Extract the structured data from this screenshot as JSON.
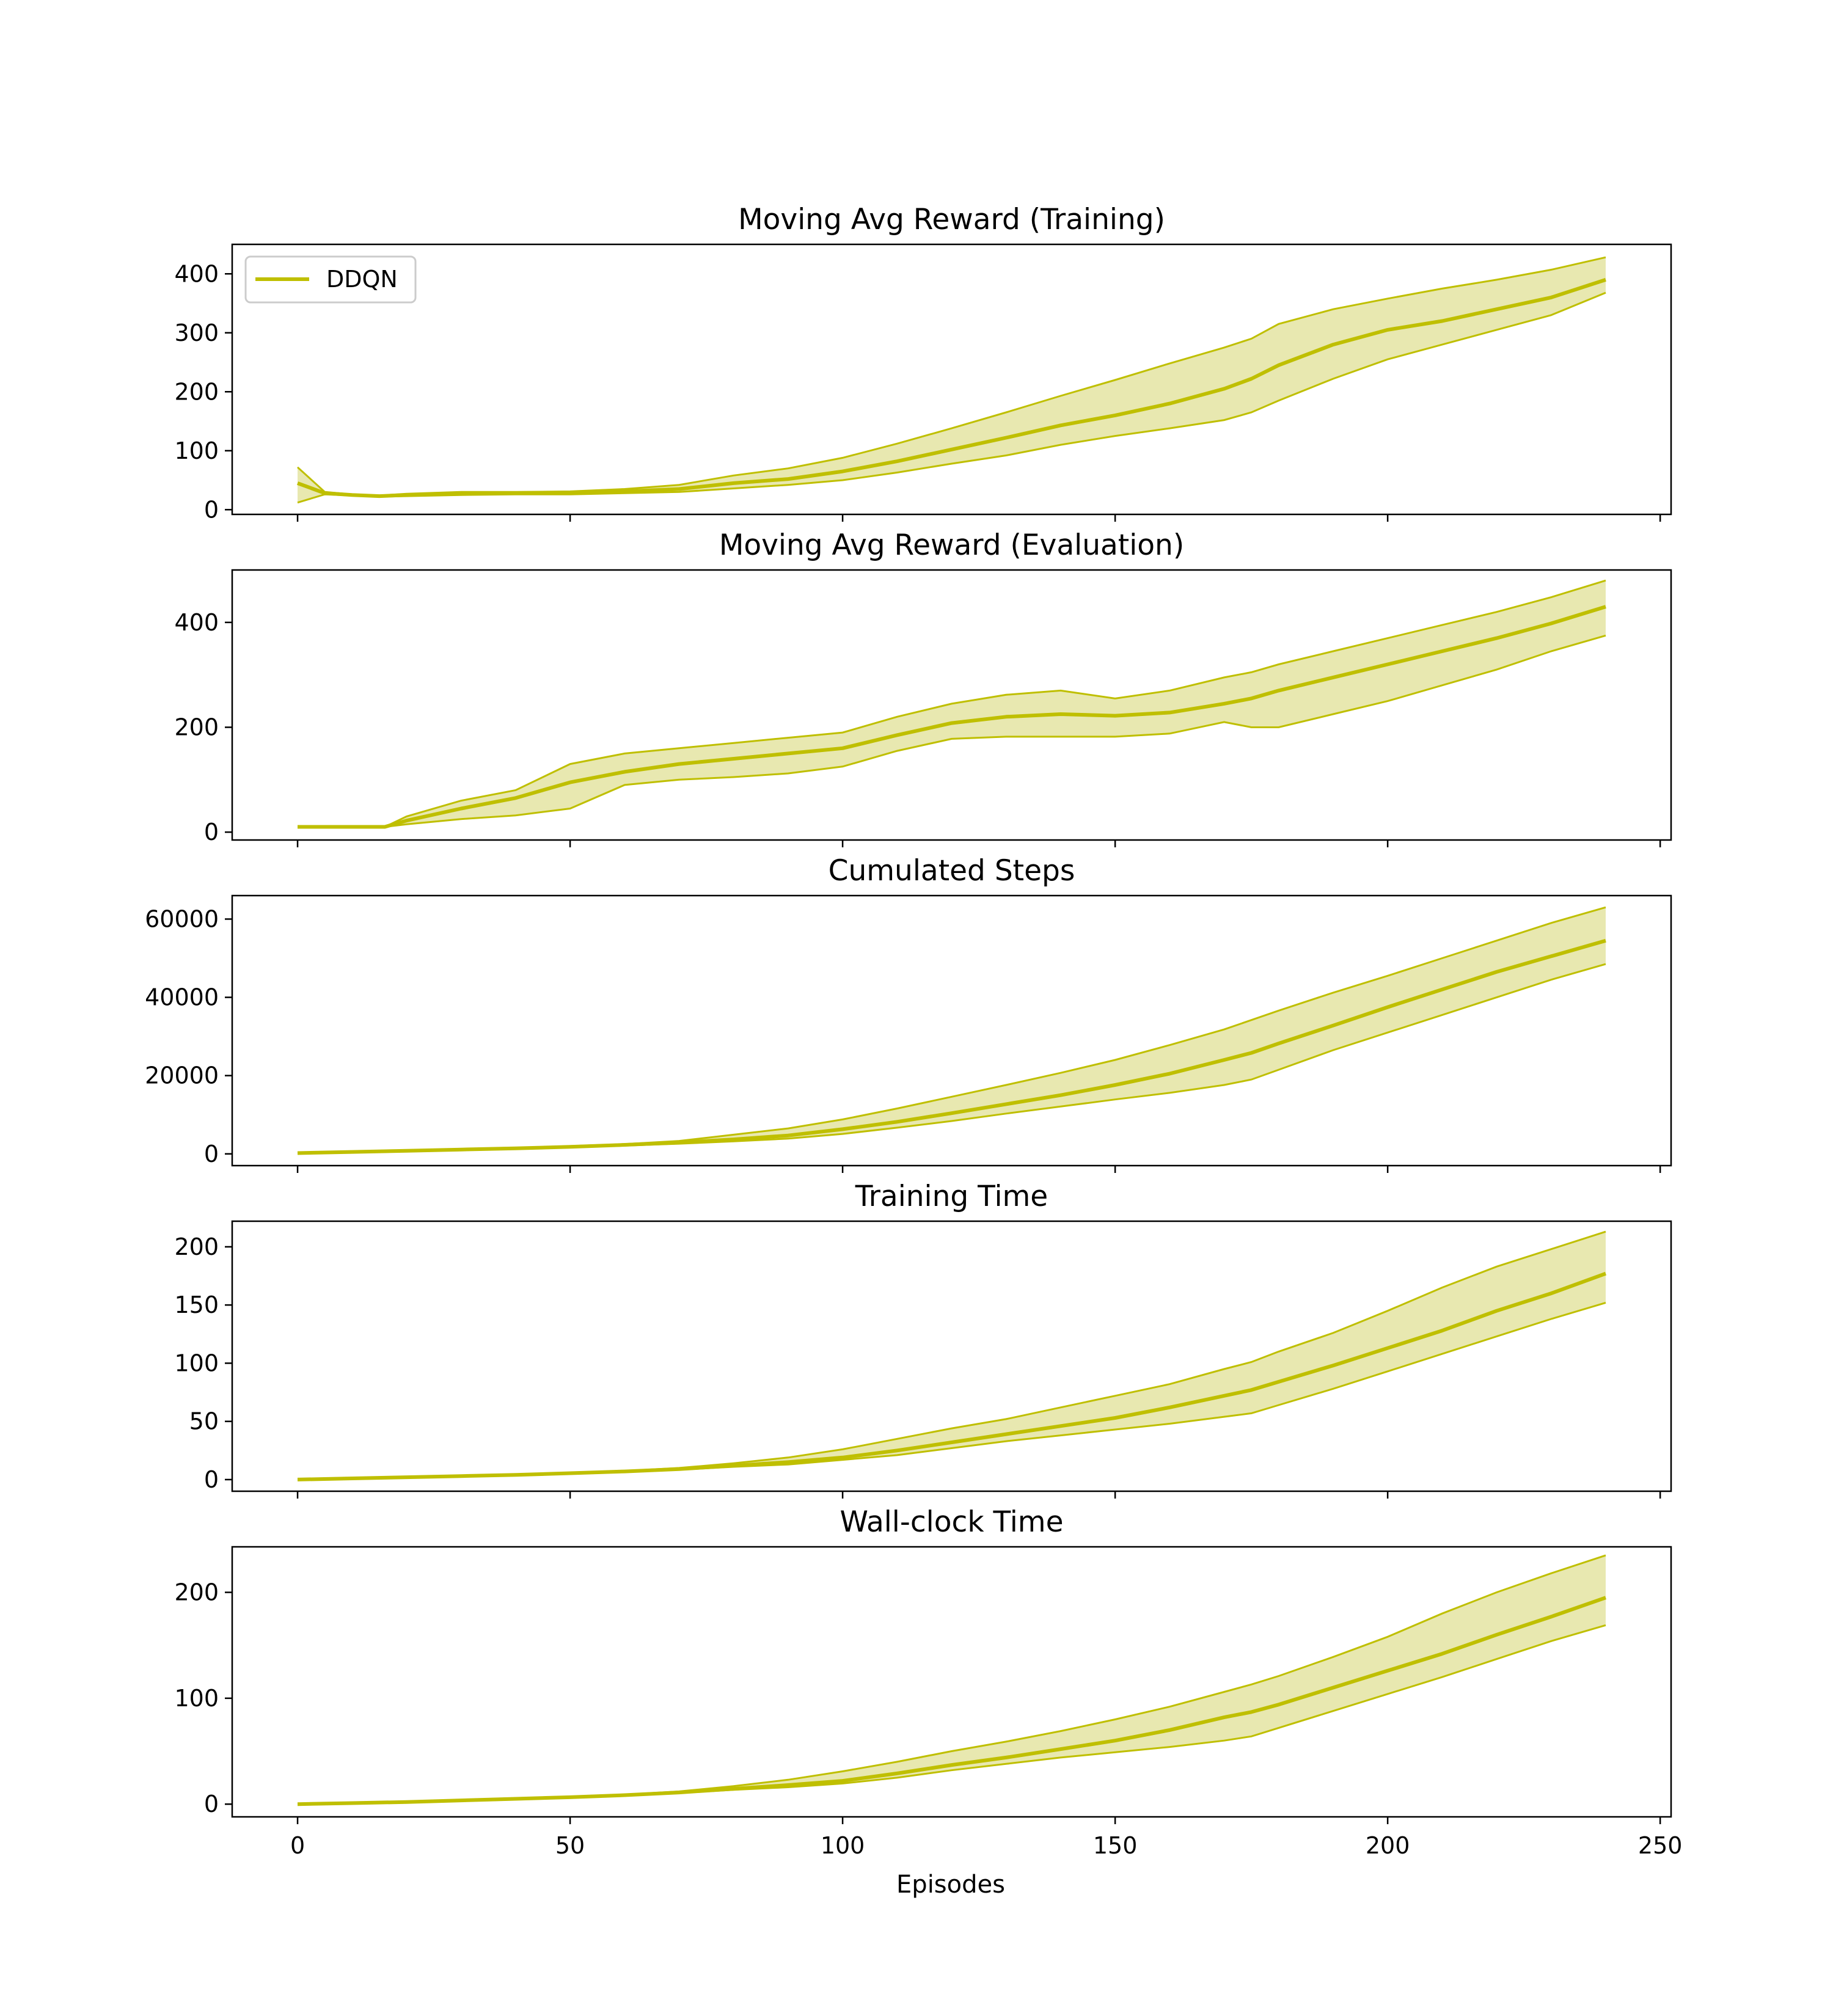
{
  "figure": {
    "xlabel": "Episodes",
    "x_ticks": [
      0,
      50,
      100,
      150,
      200,
      250
    ],
    "xlim": [
      -12,
      252
    ]
  },
  "colors": {
    "line": "#bfbf00",
    "band": "#e8e8b0"
  },
  "legend": {
    "label": "DDQN",
    "placement": "upper-left"
  },
  "chart_data": [
    {
      "type": "line",
      "title": "Moving Avg Reward (Training)",
      "ylim": [
        -8,
        450
      ],
      "y_ticks": [
        0,
        100,
        200,
        300,
        400
      ],
      "x": [
        0,
        5,
        10,
        15,
        20,
        30,
        40,
        50,
        60,
        70,
        80,
        90,
        100,
        110,
        120,
        130,
        140,
        150,
        160,
        170,
        175,
        180,
        190,
        200,
        210,
        220,
        230,
        240
      ],
      "series": [
        {
          "name": "DDQN",
          "mean": [
            45,
            28,
            25,
            23,
            25,
            27,
            28,
            28,
            31,
            35,
            45,
            52,
            65,
            82,
            102,
            122,
            143,
            160,
            180,
            205,
            222,
            245,
            280,
            305,
            320,
            340,
            360,
            390
          ],
          "upper": [
            72,
            30,
            26,
            24,
            27,
            30,
            30,
            31,
            35,
            42,
            58,
            70,
            88,
            112,
            138,
            165,
            193,
            220,
            248,
            275,
            290,
            315,
            340,
            358,
            375,
            390,
            407,
            428
          ],
          "lower": [
            12,
            26,
            24,
            22,
            23,
            25,
            26,
            26,
            28,
            30,
            36,
            42,
            50,
            63,
            78,
            92,
            110,
            125,
            138,
            152,
            165,
            185,
            222,
            255,
            280,
            305,
            330,
            368
          ]
        }
      ]
    },
    {
      "type": "line",
      "title": "Moving Avg Reward (Evaluation)",
      "ylim": [
        -15,
        500
      ],
      "y_ticks": [
        0,
        200,
        400
      ],
      "x": [
        0,
        5,
        10,
        16,
        20,
        30,
        40,
        50,
        60,
        70,
        80,
        90,
        100,
        110,
        120,
        130,
        140,
        150,
        160,
        170,
        175,
        180,
        190,
        200,
        210,
        220,
        230,
        240
      ],
      "series": [
        {
          "name": "DDQN",
          "mean": [
            10,
            10,
            10,
            10,
            22,
            45,
            65,
            95,
            115,
            130,
            140,
            150,
            160,
            185,
            208,
            220,
            225,
            222,
            228,
            245,
            255,
            270,
            295,
            320,
            345,
            370,
            398,
            430
          ],
          "upper": [
            10,
            10,
            10,
            10,
            30,
            60,
            80,
            130,
            150,
            160,
            170,
            180,
            190,
            220,
            245,
            262,
            270,
            255,
            270,
            295,
            305,
            320,
            345,
            370,
            395,
            420,
            448,
            480
          ],
          "lower": [
            10,
            10,
            10,
            10,
            15,
            25,
            32,
            45,
            90,
            100,
            105,
            112,
            125,
            155,
            178,
            182,
            182,
            182,
            188,
            210,
            200,
            200,
            225,
            250,
            280,
            310,
            345,
            375
          ]
        }
      ]
    },
    {
      "type": "line",
      "title": "Cumulated Steps",
      "ylim": [
        -3000,
        66000
      ],
      "y_ticks": [
        0,
        20000,
        40000,
        60000
      ],
      "x": [
        0,
        10,
        20,
        30,
        40,
        50,
        60,
        70,
        80,
        90,
        100,
        110,
        120,
        130,
        140,
        150,
        160,
        170,
        175,
        180,
        190,
        200,
        210,
        220,
        230,
        240
      ],
      "series": [
        {
          "name": "DDQN",
          "mean": [
            200,
            500,
            800,
            1100,
            1400,
            1800,
            2300,
            2900,
            3700,
            4700,
            6300,
            8200,
            10400,
            12700,
            15000,
            17600,
            20500,
            24000,
            25800,
            28200,
            32800,
            37500,
            42000,
            46500,
            50500,
            54500
          ],
          "upper": [
            200,
            550,
            850,
            1150,
            1500,
            2000,
            2500,
            3300,
            4900,
            6500,
            8800,
            11600,
            14600,
            17600,
            20700,
            24000,
            27800,
            31800,
            34200,
            36600,
            41200,
            45500,
            50000,
            54500,
            59000,
            63000
          ],
          "lower": [
            200,
            450,
            750,
            1050,
            1300,
            1700,
            2100,
            2600,
            3200,
            3900,
            5100,
            6700,
            8400,
            10300,
            12100,
            13900,
            15600,
            17600,
            19000,
            21500,
            26500,
            31000,
            35500,
            40000,
            44500,
            48500
          ]
        }
      ]
    },
    {
      "type": "line",
      "title": "Training Time",
      "ylim": [
        -10,
        222
      ],
      "y_ticks": [
        0,
        50,
        100,
        150,
        200
      ],
      "x": [
        0,
        10,
        20,
        30,
        40,
        50,
        60,
        70,
        80,
        90,
        100,
        110,
        120,
        130,
        140,
        150,
        160,
        170,
        175,
        180,
        190,
        200,
        210,
        220,
        230,
        240
      ],
      "series": [
        {
          "name": "DDQN",
          "mean": [
            0,
            1,
            2,
            3,
            4,
            5.5,
            7,
            9,
            12,
            15,
            19,
            25,
            32,
            39,
            46,
            53,
            62,
            72,
            77,
            84,
            98,
            113,
            128,
            145,
            160,
            177
          ],
          "upper": [
            0,
            1,
            2,
            3,
            4,
            5.5,
            7.5,
            10,
            14,
            19,
            26,
            35,
            44,
            52,
            62,
            72,
            82,
            95,
            101,
            110,
            126,
            145,
            165,
            183,
            198,
            213
          ],
          "lower": [
            0,
            1,
            2,
            3,
            4,
            5.5,
            7,
            8.5,
            11,
            13,
            17,
            21,
            27,
            33,
            38,
            43,
            48,
            54,
            57,
            64,
            78,
            93,
            108,
            123,
            138,
            152
          ]
        }
      ]
    },
    {
      "type": "line",
      "title": "Wall-clock Time",
      "ylim": [
        -12,
        243
      ],
      "y_ticks": [
        0,
        100,
        200
      ],
      "x": [
        0,
        10,
        20,
        30,
        40,
        50,
        60,
        70,
        80,
        90,
        100,
        110,
        120,
        130,
        140,
        150,
        160,
        170,
        175,
        180,
        190,
        200,
        210,
        220,
        230,
        240
      ],
      "series": [
        {
          "name": "DDQN",
          "mean": [
            0,
            1,
            2,
            3.5,
            5,
            6.5,
            8.5,
            11,
            14.5,
            18,
            22,
            29,
            37,
            44,
            52,
            60,
            70,
            82,
            87,
            94,
            110,
            126,
            142,
            160,
            177,
            195
          ],
          "upper": [
            0,
            1,
            2,
            3.5,
            5,
            6.5,
            9,
            12,
            17,
            23,
            31,
            40,
            50,
            59,
            69,
            80,
            92,
            106,
            113,
            121,
            139,
            158,
            180,
            200,
            218,
            235
          ],
          "lower": [
            0,
            1,
            2,
            3.5,
            5,
            6.5,
            8.5,
            10.5,
            13.5,
            16,
            19.5,
            25,
            32,
            38,
            44,
            49,
            54,
            60,
            64,
            72,
            88,
            104,
            120,
            137,
            154,
            169
          ]
        }
      ]
    }
  ]
}
